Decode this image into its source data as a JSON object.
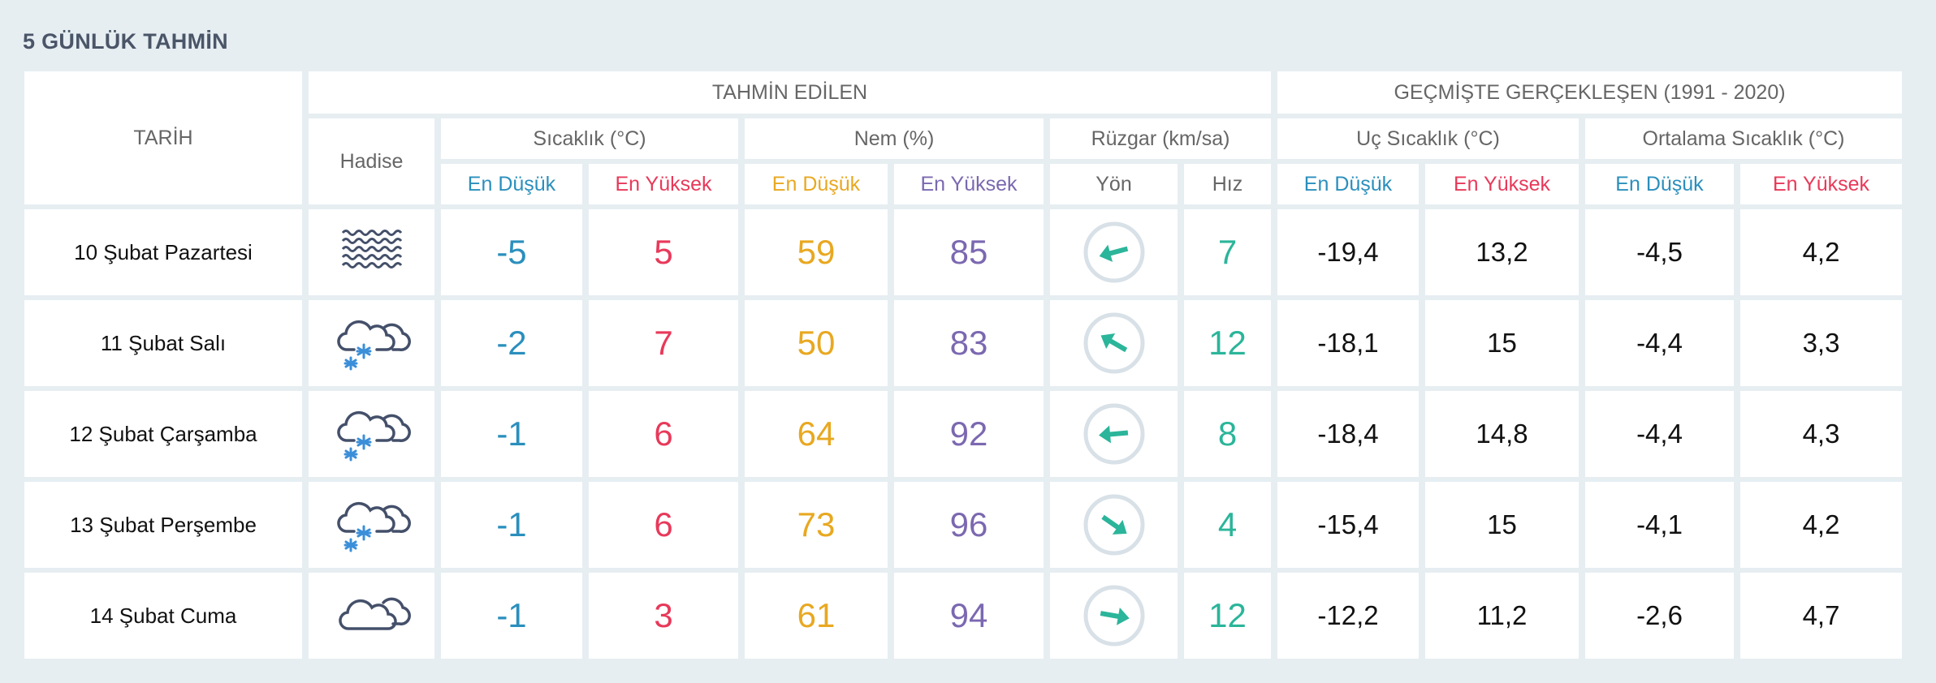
{
  "title": "5 GÜNLÜK TAHMİN",
  "headers": {
    "date": "TARİH",
    "forecast": "TAHMİN EDİLEN",
    "history": "GEÇMİŞTE GERÇEKLEŞEN (1991 - 2020)",
    "event": "Hadise",
    "temperature": "Sıcaklık (°C)",
    "humidity": "Nem (%)",
    "wind": "Rüzgar (km/sa)",
    "extreme_temp": "Uç Sıcaklık (°C)",
    "avg_temp": "Ortalama Sıcaklık (°C)",
    "min": "En Düşük",
    "max": "En Yüksek",
    "direction": "Yön",
    "speed": "Hız"
  },
  "colors": {
    "min": "#2a8fbd",
    "max": "#e8395a",
    "hum_min": "#e8a820",
    "hum_max": "#7b68b0",
    "wind": "#2bb59a"
  },
  "rows": [
    {
      "date": "10 Şubat Pazartesi",
      "icon": "fog-icon",
      "t_min": "-5",
      "t_max": "5",
      "h_min": "59",
      "h_max": "85",
      "wind_dir_deg": 165,
      "wind_speed": "7",
      "ext_min": "-19,4",
      "ext_max": "13,2",
      "avg_min": "-4,5",
      "avg_max": "4,2"
    },
    {
      "date": "11 Şubat Salı",
      "icon": "cloud-snow-icon",
      "t_min": "-2",
      "t_max": "7",
      "h_min": "50",
      "h_max": "83",
      "wind_dir_deg": 210,
      "wind_speed": "12",
      "ext_min": "-18,1",
      "ext_max": "15",
      "avg_min": "-4,4",
      "avg_max": "3,3"
    },
    {
      "date": "12 Şubat Çarşamba",
      "icon": "cloud-snow-icon",
      "t_min": "-1",
      "t_max": "6",
      "h_min": "64",
      "h_max": "92",
      "wind_dir_deg": 175,
      "wind_speed": "8",
      "ext_min": "-18,4",
      "ext_max": "14,8",
      "avg_min": "-4,4",
      "avg_max": "4,3"
    },
    {
      "date": "13 Şubat Perşembe",
      "icon": "cloud-snow-icon",
      "t_min": "-1",
      "t_max": "6",
      "h_min": "73",
      "h_max": "96",
      "wind_dir_deg": 35,
      "wind_speed": "4",
      "ext_min": "-15,4",
      "ext_max": "15",
      "avg_min": "-4,1",
      "avg_max": "4,2"
    },
    {
      "date": "14 Şubat Cuma",
      "icon": "cloud-icon",
      "t_min": "-1",
      "t_max": "3",
      "h_min": "61",
      "h_max": "94",
      "wind_dir_deg": 10,
      "wind_speed": "12",
      "ext_min": "-12,2",
      "ext_max": "11,2",
      "avg_min": "-2,6",
      "avg_max": "4,7"
    }
  ]
}
